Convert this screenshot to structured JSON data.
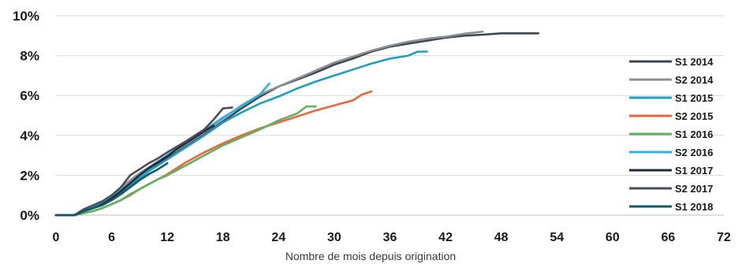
{
  "chart_data": {
    "type": "line",
    "title": "",
    "xlabel": "Nombre de mois depuis origination",
    "ylabel": "",
    "xlim": [
      0,
      72
    ],
    "ylim": [
      0,
      10
    ],
    "x_ticks": [
      "0",
      "6",
      "12",
      "18",
      "24",
      "30",
      "36",
      "42",
      "48",
      "54",
      "60",
      "66",
      "72"
    ],
    "y_ticks": [
      "0%",
      "2%",
      "4%",
      "6%",
      "8%",
      "10%"
    ],
    "grid": "horizontal",
    "legend_position": "right",
    "series": [
      {
        "name": "S1 2014",
        "color": "#3d4553",
        "points": [
          [
            0,
            0
          ],
          [
            2,
            0
          ],
          [
            3,
            0.25
          ],
          [
            4,
            0.4
          ],
          [
            5,
            0.6
          ],
          [
            6,
            0.9
          ],
          [
            7,
            1.2
          ],
          [
            8,
            1.6
          ],
          [
            9,
            1.95
          ],
          [
            10,
            2.3
          ],
          [
            11,
            2.55
          ],
          [
            12,
            2.85
          ],
          [
            14,
            3.45
          ],
          [
            16,
            4.05
          ],
          [
            18,
            4.7
          ],
          [
            20,
            5.35
          ],
          [
            22,
            5.95
          ],
          [
            24,
            6.45
          ],
          [
            26,
            6.8
          ],
          [
            28,
            7.15
          ],
          [
            30,
            7.55
          ],
          [
            32,
            7.85
          ],
          [
            34,
            8.2
          ],
          [
            36,
            8.45
          ],
          [
            38,
            8.6
          ],
          [
            40,
            8.75
          ],
          [
            42,
            8.9
          ],
          [
            44,
            9.0
          ],
          [
            46,
            9.05
          ],
          [
            48,
            9.12
          ],
          [
            50,
            9.12
          ],
          [
            52,
            9.12
          ]
        ]
      },
      {
        "name": "S2 2014",
        "color": "#8c8f94",
        "points": [
          [
            0,
            0
          ],
          [
            2,
            0
          ],
          [
            3,
            0.25
          ],
          [
            4,
            0.45
          ],
          [
            5,
            0.65
          ],
          [
            6,
            0.95
          ],
          [
            7,
            1.35
          ],
          [
            8,
            1.75
          ],
          [
            9,
            2.1
          ],
          [
            10,
            2.4
          ],
          [
            11,
            2.7
          ],
          [
            12,
            3.0
          ],
          [
            14,
            3.6
          ],
          [
            16,
            4.2
          ],
          [
            18,
            4.85
          ],
          [
            20,
            5.5
          ],
          [
            22,
            6.05
          ],
          [
            24,
            6.45
          ],
          [
            26,
            6.85
          ],
          [
            28,
            7.25
          ],
          [
            30,
            7.65
          ],
          [
            32,
            7.95
          ],
          [
            34,
            8.25
          ],
          [
            36,
            8.5
          ],
          [
            38,
            8.7
          ],
          [
            40,
            8.85
          ],
          [
            42,
            8.95
          ],
          [
            44,
            9.1
          ],
          [
            46,
            9.2
          ]
        ]
      },
      {
        "name": "S1 2015",
        "color": "#1f9ec2",
        "points": [
          [
            0,
            0
          ],
          [
            2,
            0
          ],
          [
            3,
            0.2
          ],
          [
            4,
            0.35
          ],
          [
            5,
            0.55
          ],
          [
            6,
            0.8
          ],
          [
            7,
            1.1
          ],
          [
            8,
            1.5
          ],
          [
            9,
            1.85
          ],
          [
            10,
            2.2
          ],
          [
            11,
            2.5
          ],
          [
            12,
            2.8
          ],
          [
            14,
            3.4
          ],
          [
            16,
            4.0
          ],
          [
            18,
            4.65
          ],
          [
            20,
            5.15
          ],
          [
            22,
            5.6
          ],
          [
            24,
            5.95
          ],
          [
            26,
            6.35
          ],
          [
            28,
            6.7
          ],
          [
            30,
            7.0
          ],
          [
            32,
            7.3
          ],
          [
            34,
            7.6
          ],
          [
            36,
            7.85
          ],
          [
            38,
            8.0
          ],
          [
            39,
            8.2
          ],
          [
            40,
            8.2
          ]
        ]
      },
      {
        "name": "S2 2015",
        "color": "#e8683a",
        "points": [
          [
            0,
            0
          ],
          [
            2,
            0
          ],
          [
            3,
            0.1
          ],
          [
            4,
            0.2
          ],
          [
            5,
            0.35
          ],
          [
            6,
            0.55
          ],
          [
            7,
            0.75
          ],
          [
            8,
            1.0
          ],
          [
            9,
            1.3
          ],
          [
            10,
            1.55
          ],
          [
            11,
            1.8
          ],
          [
            12,
            2.05
          ],
          [
            14,
            2.65
          ],
          [
            16,
            3.15
          ],
          [
            18,
            3.6
          ],
          [
            20,
            4.0
          ],
          [
            22,
            4.35
          ],
          [
            24,
            4.65
          ],
          [
            26,
            4.95
          ],
          [
            28,
            5.25
          ],
          [
            30,
            5.5
          ],
          [
            32,
            5.75
          ],
          [
            33,
            6.05
          ],
          [
            34,
            6.2
          ]
        ]
      },
      {
        "name": "S1 2016",
        "color": "#5fb05f",
        "points": [
          [
            0,
            0
          ],
          [
            2,
            0
          ],
          [
            3,
            0.1
          ],
          [
            4,
            0.2
          ],
          [
            5,
            0.35
          ],
          [
            6,
            0.55
          ],
          [
            7,
            0.75
          ],
          [
            8,
            1.05
          ],
          [
            9,
            1.3
          ],
          [
            10,
            1.55
          ],
          [
            11,
            1.8
          ],
          [
            12,
            2.0
          ],
          [
            14,
            2.5
          ],
          [
            16,
            3.0
          ],
          [
            18,
            3.5
          ],
          [
            20,
            3.9
          ],
          [
            22,
            4.3
          ],
          [
            24,
            4.75
          ],
          [
            26,
            5.1
          ],
          [
            27,
            5.45
          ],
          [
            28,
            5.45
          ]
        ]
      },
      {
        "name": "S2 2016",
        "color": "#2bb3e2",
        "points": [
          [
            0,
            0
          ],
          [
            2,
            0
          ],
          [
            3,
            0.2
          ],
          [
            4,
            0.4
          ],
          [
            5,
            0.6
          ],
          [
            6,
            0.9
          ],
          [
            7,
            1.25
          ],
          [
            8,
            1.6
          ],
          [
            9,
            1.95
          ],
          [
            10,
            2.3
          ],
          [
            11,
            2.65
          ],
          [
            12,
            3.0
          ],
          [
            14,
            3.65
          ],
          [
            16,
            4.25
          ],
          [
            18,
            4.9
          ],
          [
            20,
            5.45
          ],
          [
            22,
            6.05
          ],
          [
            23,
            6.6
          ]
        ]
      },
      {
        "name": "S1 2017",
        "color": "#1f2a3a",
        "points": [
          [
            0,
            0
          ],
          [
            2,
            0
          ],
          [
            3,
            0.2
          ],
          [
            4,
            0.35
          ],
          [
            5,
            0.55
          ],
          [
            6,
            0.85
          ],
          [
            7,
            1.2
          ],
          [
            8,
            1.6
          ],
          [
            9,
            2.0
          ],
          [
            10,
            2.35
          ],
          [
            11,
            2.65
          ],
          [
            12,
            2.95
          ],
          [
            13,
            3.3
          ],
          [
            14,
            3.6
          ],
          [
            15,
            3.9
          ],
          [
            16,
            4.2
          ],
          [
            17,
            4.5
          ]
        ]
      },
      {
        "name": "S2 2017",
        "color": "#4a4f5a",
        "points": [
          [
            0,
            0
          ],
          [
            2,
            0
          ],
          [
            3,
            0.3
          ],
          [
            4,
            0.5
          ],
          [
            5,
            0.7
          ],
          [
            6,
            1.0
          ],
          [
            7,
            1.4
          ],
          [
            8,
            2.0
          ],
          [
            9,
            2.3
          ],
          [
            10,
            2.6
          ],
          [
            11,
            2.85
          ],
          [
            12,
            3.15
          ],
          [
            14,
            3.7
          ],
          [
            16,
            4.3
          ],
          [
            17,
            4.8
          ],
          [
            18,
            5.35
          ],
          [
            19,
            5.4
          ]
        ]
      },
      {
        "name": "S1 2018",
        "color": "#0f5a66",
        "points": [
          [
            0,
            0
          ],
          [
            2,
            0
          ],
          [
            3,
            0.2
          ],
          [
            4,
            0.35
          ],
          [
            5,
            0.5
          ],
          [
            6,
            0.75
          ],
          [
            7,
            1.05
          ],
          [
            8,
            1.4
          ],
          [
            9,
            1.75
          ],
          [
            10,
            2.05
          ],
          [
            11,
            2.3
          ],
          [
            12,
            2.6
          ]
        ]
      }
    ]
  }
}
